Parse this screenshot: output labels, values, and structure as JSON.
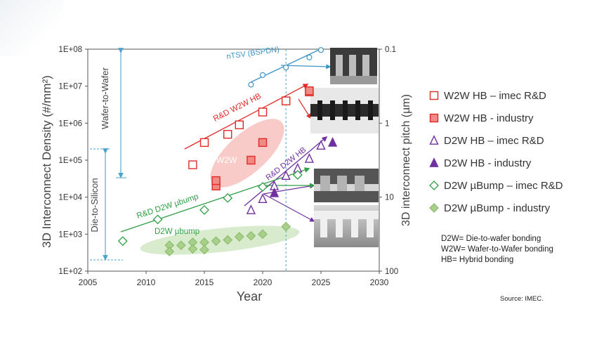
{
  "chart_data": {
    "type": "scatter",
    "xlabel": "Year",
    "ylabel": "3D Interconnect Density (#/mm²)",
    "y2label": "3D interconnect pitch (µm)",
    "xlim": [
      2005,
      2030
    ],
    "ylim": [
      100,
      100000000
    ],
    "x_ticks": [
      "2005",
      "2010",
      "2015",
      "2020",
      "2025",
      "2030"
    ],
    "y_ticks": [
      "1E+02",
      "1E+03",
      "1E+04",
      "1E+05",
      "1E+06",
      "1E+07",
      "1E+08"
    ],
    "y2_ticks": [
      "0.1",
      "1",
      "10",
      "100"
    ],
    "reference_year": 2022,
    "series": [
      {
        "name": "nTSV (BSPDN)",
        "marker": "open-circle",
        "color": "#3d95c6",
        "points": [
          [
            2019,
            11000000
          ],
          [
            2020,
            20000000
          ],
          [
            2022,
            32000000
          ],
          [
            2024,
            60000000
          ],
          [
            2025,
            95000000
          ]
        ]
      },
      {
        "name": "W2W HB – imec R&D",
        "marker": "open-square",
        "color": "#e02a27",
        "points": [
          [
            2014,
            75000
          ],
          [
            2015,
            300000
          ],
          [
            2017,
            500000
          ],
          [
            2018,
            900000
          ],
          [
            2020,
            2000000
          ],
          [
            2022,
            4000000
          ],
          [
            2024,
            7000000
          ]
        ]
      },
      {
        "name": "W2W HB - industry",
        "marker": "filled-square",
        "color": "#e02a27",
        "points": [
          [
            2016,
            20000
          ],
          [
            2016,
            28000
          ],
          [
            2019,
            100000
          ],
          [
            2020,
            300000
          ],
          [
            2024,
            7500000
          ]
        ]
      },
      {
        "name": "D2W HB – imec R&D",
        "marker": "open-triangle",
        "color": "#7030a0",
        "points": [
          [
            2019,
            4500
          ],
          [
            2020,
            9000
          ],
          [
            2021,
            20000
          ],
          [
            2022,
            38000
          ],
          [
            2023,
            60000
          ],
          [
            2024,
            110000
          ],
          [
            2025,
            250000
          ]
        ]
      },
      {
        "name": "D2W HB - industry",
        "marker": "filled-triangle",
        "color": "#7030a0",
        "points": [
          [
            2021,
            13000
          ],
          [
            2026,
            300000
          ]
        ]
      },
      {
        "name": "D2W µBump – imec R&D",
        "marker": "open-diamond",
        "color": "#2f9e44",
        "points": [
          [
            2008,
            650
          ],
          [
            2011,
            2500
          ],
          [
            2015,
            4500
          ],
          [
            2017,
            9500
          ],
          [
            2020,
            19000
          ],
          [
            2023,
            40000
          ]
        ]
      },
      {
        "name": "D2W µBump - industry",
        "marker": "filled-diamond",
        "color": "#a9cf8d",
        "points": [
          [
            2012,
            500
          ],
          [
            2012,
            340
          ],
          [
            2013,
            500
          ],
          [
            2014,
            600
          ],
          [
            2014,
            400
          ],
          [
            2015,
            600
          ],
          [
            2015,
            380
          ],
          [
            2016,
            650
          ],
          [
            2017,
            700
          ],
          [
            2018,
            850
          ],
          [
            2019,
            900
          ],
          [
            2020,
            1000
          ],
          [
            2022,
            1600
          ]
        ]
      }
    ],
    "trend_labels": [
      {
        "text": "nTSV (BSPDN)",
        "color": "#3d95c6"
      },
      {
        "text": "R&D W2W HB",
        "color": "#e02a27"
      },
      {
        "text": "W2W",
        "color": "#e02a27"
      },
      {
        "text": "R&D D2W HB",
        "color": "#7030a0"
      },
      {
        "text": "R&D D2W µbump",
        "color": "#2f9e44"
      },
      {
        "text": "D2W µbump",
        "color": "#2f9e44"
      }
    ],
    "ranges": [
      {
        "text": "Wafer-to-Wafer",
        "from": 170000,
        "to": 100000000
      },
      {
        "text": "Die-to-Silicon",
        "from": 200,
        "to": 200000
      }
    ]
  },
  "legend": [
    {
      "label": "W2W HB – imec R&D",
      "marker": "open-square",
      "color": "#e02a27"
    },
    {
      "label": "W2W HB - industry",
      "marker": "filled-square",
      "color": "#e02a27"
    },
    {
      "label": "D2W HB – imec R&D",
      "marker": "open-triangle",
      "color": "#7030a0"
    },
    {
      "label": "D2W HB - industry",
      "marker": "filled-triangle",
      "color": "#7030a0"
    },
    {
      "label": "D2W µBump – imec R&D",
      "marker": "open-diamond",
      "color": "#2f9e44"
    },
    {
      "label": "D2W µBump - industry",
      "marker": "filled-diamond",
      "color": "#a9cf8d"
    }
  ],
  "definitions": [
    "D2W= Die-to-wafer bonding",
    "W2W= Wafer-to-Wafer bonding",
    "HB= Hybrid bonding"
  ],
  "source": "Source: IMEC."
}
